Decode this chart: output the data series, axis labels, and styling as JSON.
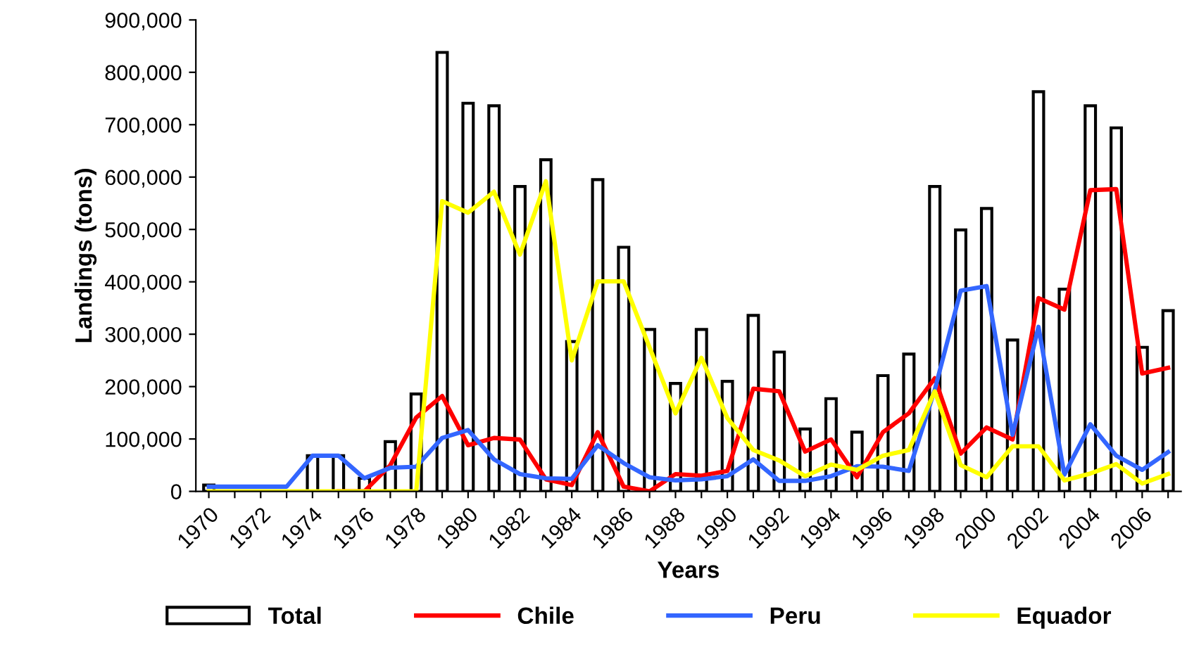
{
  "chart_data": {
    "type": "bar",
    "xlabel": "Years",
    "ylabel": "Landings (tons)",
    "categories": [
      "1970",
      null,
      "1972",
      null,
      "1974",
      null,
      "1976",
      null,
      "1978",
      null,
      "1980",
      null,
      "1982",
      null,
      "1984",
      null,
      "1986",
      null,
      "1988",
      null,
      "1990",
      null,
      "1992",
      null,
      "1994",
      null,
      "1996",
      null,
      "1998",
      null,
      "2000",
      null,
      "2002",
      null,
      "2004",
      null,
      "2006",
      null
    ],
    "series": [
      {
        "name": "Total",
        "color": "#ffffff",
        "values": [
          12000,
          null,
          null,
          null,
          68000,
          68000,
          25000,
          95000,
          186000,
          838000,
          741000,
          736000,
          582000,
          633000,
          286000,
          595000,
          466000,
          309000,
          206000,
          309000,
          210000,
          336000,
          266000,
          119000,
          177000,
          113000,
          221000,
          262000,
          582000,
          499000,
          540000,
          289000,
          763000,
          386000,
          736000,
          694000,
          275000,
          345000
        ]
      },
      {
        "name": "Chile",
        "type": "line",
        "color": "#ff0000",
        "values": [
          null,
          null,
          null,
          null,
          null,
          0,
          0,
          50000,
          141000,
          182000,
          88000,
          102000,
          99000,
          23000,
          12000,
          113000,
          9000,
          0,
          33000,
          30000,
          39000,
          196000,
          191000,
          76000,
          99000,
          27000,
          113000,
          149000,
          216000,
          72000,
          122000,
          99000,
          369000,
          347000,
          575000,
          577000,
          225000,
          236000
        ]
      },
      {
        "name": "Peru",
        "type": "line",
        "color": "#3366ff",
        "values": [
          9000,
          9000,
          9000,
          9000,
          68000,
          68000,
          25000,
          45000,
          47000,
          102000,
          117000,
          61000,
          33000,
          25000,
          24000,
          88000,
          54000,
          27000,
          21000,
          23000,
          29000,
          61000,
          20000,
          20000,
          29000,
          48000,
          47000,
          39000,
          194000,
          383000,
          392000,
          108000,
          314000,
          32000,
          128000,
          68000,
          41000,
          75000
        ]
      },
      {
        "name": "Equador",
        "type": "line",
        "color": "#ffff00",
        "values": [
          0,
          0,
          0,
          0,
          0,
          0,
          0,
          0,
          0,
          554000,
          532000,
          572000,
          452000,
          592000,
          250000,
          401000,
          401000,
          275000,
          149000,
          255000,
          140000,
          79000,
          59000,
          29000,
          51000,
          41000,
          68000,
          79000,
          191000,
          50000,
          27000,
          86000,
          86000,
          21000,
          34000,
          52000,
          15000,
          33000
        ]
      }
    ],
    "ylim": [
      0,
      900000
    ],
    "yticks": [
      {
        "value": 0,
        "label": "0"
      },
      {
        "value": 100000,
        "label": "100,000"
      },
      {
        "value": 200000,
        "label": "200,000"
      },
      {
        "value": 300000,
        "label": "300,000"
      },
      {
        "value": 400000,
        "label": "400,000"
      },
      {
        "value": 500000,
        "label": "500,000"
      },
      {
        "value": 600000,
        "label": "600,000"
      },
      {
        "value": 700000,
        "label": "700,000"
      },
      {
        "value": 800000,
        "label": "800,000"
      },
      {
        "value": 900000,
        "label": "900,000"
      }
    ],
    "grid": false,
    "legend": "bottom",
    "marker": "none",
    "line_style": "solid"
  }
}
